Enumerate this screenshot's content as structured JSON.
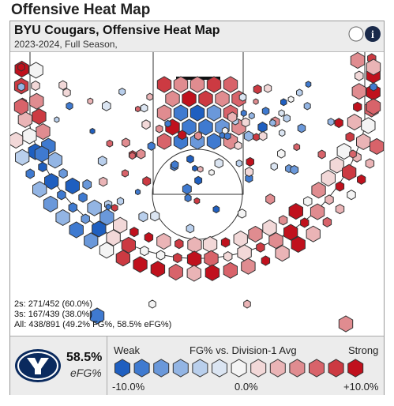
{
  "header": {
    "title": "Offensive Heat Map"
  },
  "card": {
    "title": "BYU Cougars, Offensive Heat Map",
    "subtitle": "2023-2024, Full Season,"
  },
  "stats": [
    "2s: 271/452 (60.0%)",
    "3s: 167/439 (38.0%)",
    "All: 438/891 (49.2% FG%, 58.5% eFG%)"
  ],
  "legend_panel": {
    "efg_value": "58.5%",
    "efg_label": "eFG%",
    "weak": "Weak",
    "title": "FG% vs. Division-1 Avg",
    "strong": "Strong",
    "scale_labels": [
      "-10.0%",
      "0.0%",
      "+10.0%"
    ]
  },
  "scale_colors": [
    "#1f5fc0",
    "#3f7ad0",
    "#6a98da",
    "#93b5e4",
    "#b9cfec",
    "#dbe5f2",
    "#f4f4f4",
    "#f2d8d8",
    "#eab4b6",
    "#e08c90",
    "#d8636a",
    "#cc3a42",
    "#c0111d"
  ]
}
